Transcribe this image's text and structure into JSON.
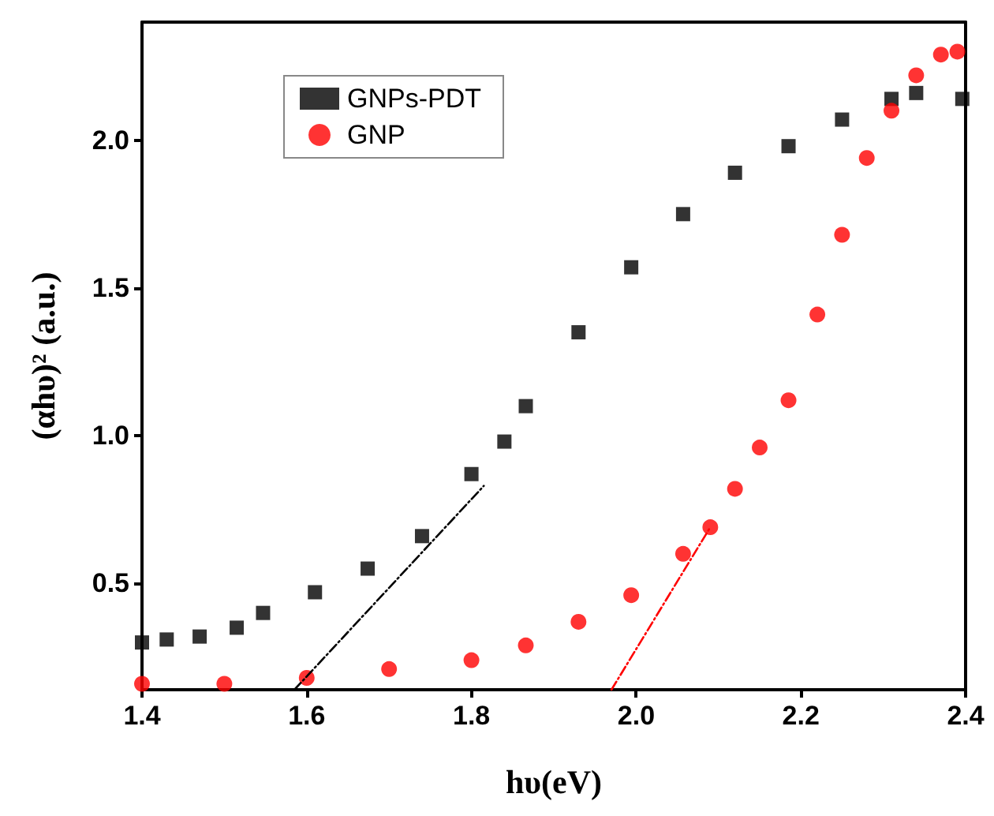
{
  "chart_data": {
    "type": "scatter",
    "xlabel": "hυ(eV)",
    "ylabel": "(αhυ)² (a.u.)",
    "xlim": [
      1.4,
      2.4
    ],
    "ylim": [
      0.14,
      2.4
    ],
    "xticks": [
      1.4,
      1.6,
      1.8,
      {
        "value": 2,
        "label": "2.0"
      },
      2.2,
      2.4
    ],
    "yticks": [
      0.5,
      {
        "value": 1,
        "label": "1.0"
      },
      1.5,
      {
        "value": 2,
        "label": "2.0"
      }
    ],
    "grid": false,
    "legend": "top left",
    "series": [
      {
        "name": "GNPs-PDT",
        "color": "#000000",
        "marker": "square",
        "x": [
          1.4,
          1.43,
          1.47,
          1.515,
          1.547,
          1.61,
          1.674,
          1.74,
          1.8,
          1.84,
          1.866,
          1.93,
          1.994,
          2.057,
          2.12,
          2.185,
          2.25,
          2.31,
          2.34,
          2.396
        ],
        "values": [
          0.3,
          0.31,
          0.32,
          0.35,
          0.4,
          0.47,
          0.55,
          0.66,
          0.87,
          0.98,
          1.1,
          1.35,
          1.57,
          1.75,
          1.89,
          1.98,
          2.07,
          2.14,
          2.16,
          2.14
        ]
      },
      {
        "name": "GNP",
        "color": "#ff0000",
        "marker": "circle",
        "x": [
          1.4,
          1.5,
          1.6,
          1.7,
          1.8,
          1.866,
          1.93,
          1.994,
          2.057,
          2.09,
          2.12,
          2.15,
          2.185,
          2.22,
          2.25,
          2.28,
          2.31,
          2.34,
          2.37,
          2.39
        ],
        "values": [
          0.16,
          0.16,
          0.18,
          0.21,
          0.24,
          0.29,
          0.37,
          0.46,
          0.6,
          0.69,
          0.82,
          0.96,
          1.12,
          1.41,
          1.68,
          1.94,
          2.1,
          2.22,
          2.29,
          2.3
        ]
      },
      {
        "type": "line",
        "color": "#000000",
        "line_style": "dashed",
        "marker": "none",
        "x": [
          1.585,
          1.815
        ],
        "values": [
          0.14,
          0.83
        ]
      },
      {
        "type": "line",
        "color": "#ff0000",
        "line_style": "dashed",
        "marker": "none",
        "x": [
          1.97,
          2.09
        ],
        "values": [
          0.14,
          0.69
        ]
      }
    ]
  }
}
